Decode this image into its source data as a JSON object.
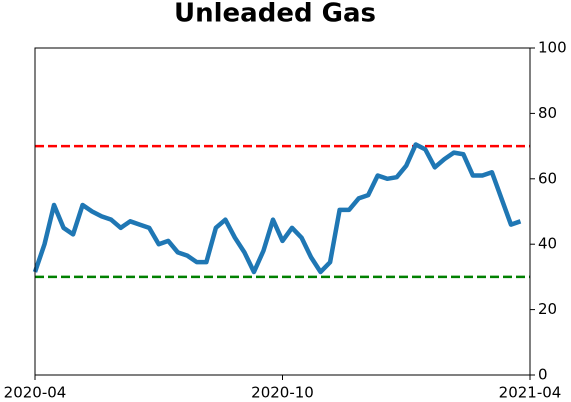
{
  "chart_data": {
    "type": "line",
    "title": "Unleaded Gas",
    "categories": [
      "2020-04",
      null,
      null,
      null,
      null,
      null,
      null,
      null,
      null,
      null,
      null,
      null,
      null,
      null,
      null,
      null,
      null,
      null,
      null,
      null,
      null,
      null,
      null,
      null,
      null,
      null,
      "2020-10",
      null,
      null,
      null,
      null,
      null,
      null,
      null,
      null,
      null,
      null,
      null,
      null,
      null,
      null,
      null,
      null,
      null,
      null,
      null,
      null,
      null,
      null,
      null,
      null,
      null,
      "2021-04"
    ],
    "series": [
      {
        "color": "#1f77b4",
        "values": [
          31.5,
          40,
          52,
          45,
          43,
          52,
          50,
          48.5,
          47.5,
          45,
          47,
          46,
          45,
          40,
          41,
          37.5,
          36.5,
          34.5,
          34.5,
          45,
          47.5,
          42,
          37.5,
          31.5,
          38,
          47.5,
          41,
          45,
          42,
          36,
          31.5,
          34.5,
          50.5,
          50.5,
          54,
          55,
          61,
          60,
          60.5,
          64,
          70.5,
          69,
          63.5,
          66,
          68,
          67.5,
          61,
          61,
          62,
          54,
          46,
          47,
          null
        ]
      }
    ],
    "ylim": [
      0,
      100
    ],
    "yticks": [
      0,
      20,
      40,
      60,
      80,
      100
    ],
    "y_axis_side": "right",
    "reference_lines": [
      {
        "value": 70,
        "color": "#ff0000"
      },
      {
        "value": 30,
        "color": "#008000"
      }
    ]
  }
}
